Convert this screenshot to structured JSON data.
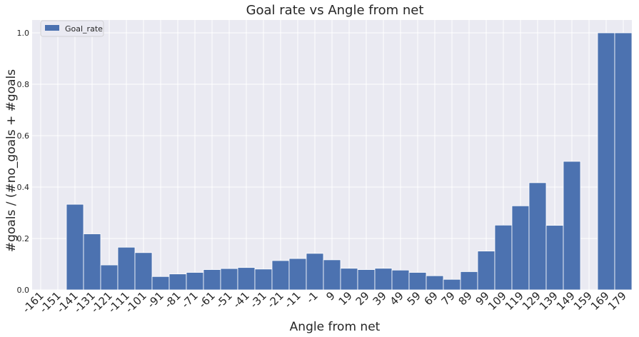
{
  "chart_data": {
    "type": "bar",
    "title": "Goal rate vs Angle from net",
    "xlabel": "Angle from net",
    "ylabel": "#goals / (#no_goals + #goals",
    "ylim": [
      0,
      1.05
    ],
    "yticks": [
      "0.0",
      "0.2",
      "0.4",
      "0.6",
      "0.8",
      "1.0"
    ],
    "grid": true,
    "legend": {
      "position": "top-left"
    },
    "categories": [
      "-161",
      "-151",
      "-141",
      "-131",
      "-121",
      "-111",
      "-101",
      "-91",
      "-81",
      "-71",
      "-61",
      "-51",
      "-41",
      "-31",
      "-21",
      "-11",
      "-1",
      "9",
      "19",
      "29",
      "39",
      "49",
      "59",
      "69",
      "79",
      "89",
      "99",
      "109",
      "119",
      "129",
      "139",
      "149",
      "159",
      "169",
      "179"
    ],
    "series": [
      {
        "name": "Goal_rate",
        "color": "#4c72b0",
        "values": [
          0,
          0,
          0.333,
          0.218,
          0.097,
          0.166,
          0.145,
          0.052,
          0.062,
          0.068,
          0.079,
          0.083,
          0.087,
          0.081,
          0.114,
          0.122,
          0.142,
          0.117,
          0.084,
          0.079,
          0.084,
          0.077,
          0.068,
          0.055,
          0.041,
          0.071,
          0.151,
          0.252,
          0.327,
          0.417,
          0.251,
          0.5,
          0,
          1.0,
          1.0
        ]
      }
    ]
  }
}
